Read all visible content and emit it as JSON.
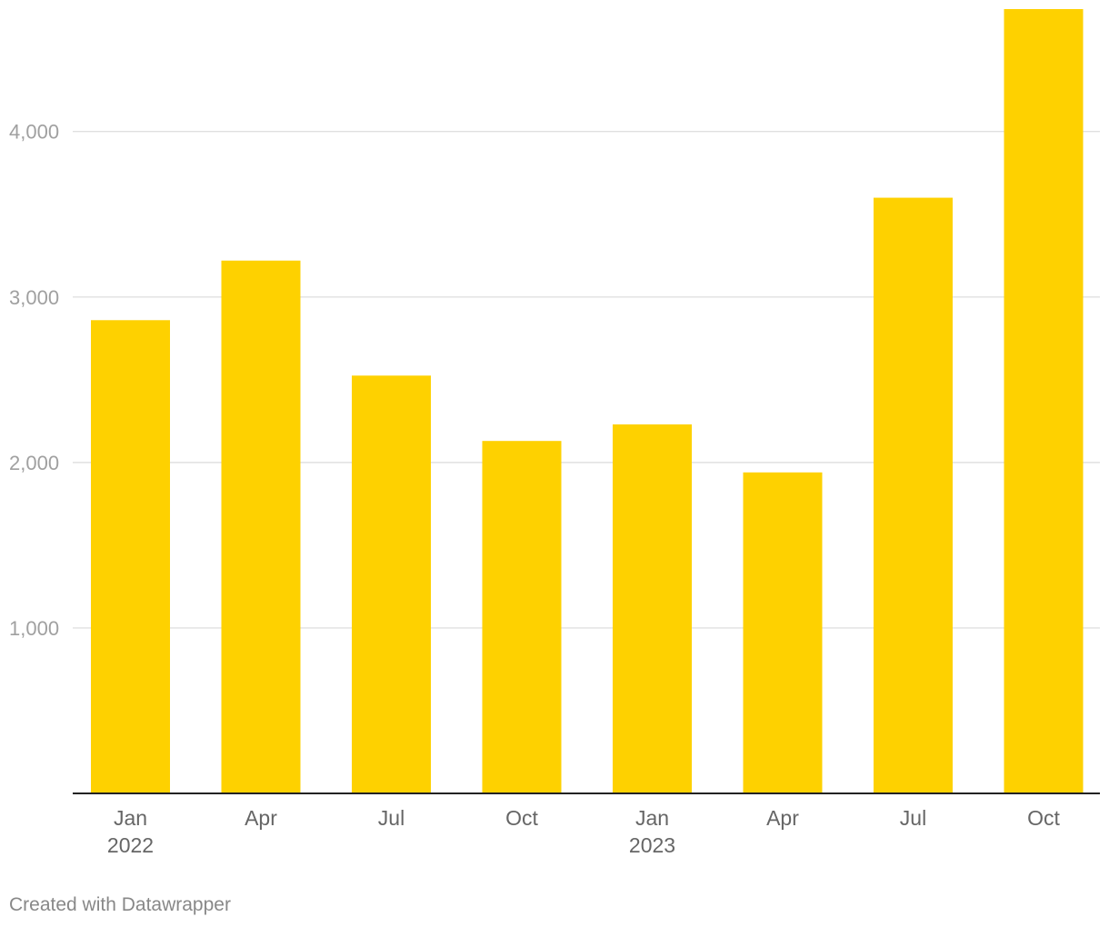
{
  "chart_data": {
    "type": "bar",
    "categories": [
      "Jan 2022",
      "Apr 2022",
      "Jul 2022",
      "Oct 2022",
      "Jan 2023",
      "Apr 2023",
      "Jul 2023",
      "Oct 2023"
    ],
    "tick_labels": [
      [
        "Jan",
        "2022"
      ],
      [
        "Apr",
        ""
      ],
      [
        "Jul",
        ""
      ],
      [
        "Oct",
        ""
      ],
      [
        "Jan",
        "2023"
      ],
      [
        "Apr",
        ""
      ],
      [
        "Jul",
        ""
      ],
      [
        "Oct",
        ""
      ]
    ],
    "values": [
      2860,
      3220,
      2525,
      2130,
      2230,
      1940,
      3600,
      4740
    ],
    "title": "",
    "xlabel": "",
    "ylabel": "",
    "ylim": [
      0,
      4740
    ],
    "yticks": [
      1000,
      2000,
      3000,
      4000
    ],
    "ytick_labels": [
      "1,000",
      "2,000",
      "3,000",
      "4,000"
    ],
    "grid": true,
    "legend": "none",
    "bar_color": "#fed100"
  },
  "footer": {
    "credit": "Created with Datawrapper"
  }
}
